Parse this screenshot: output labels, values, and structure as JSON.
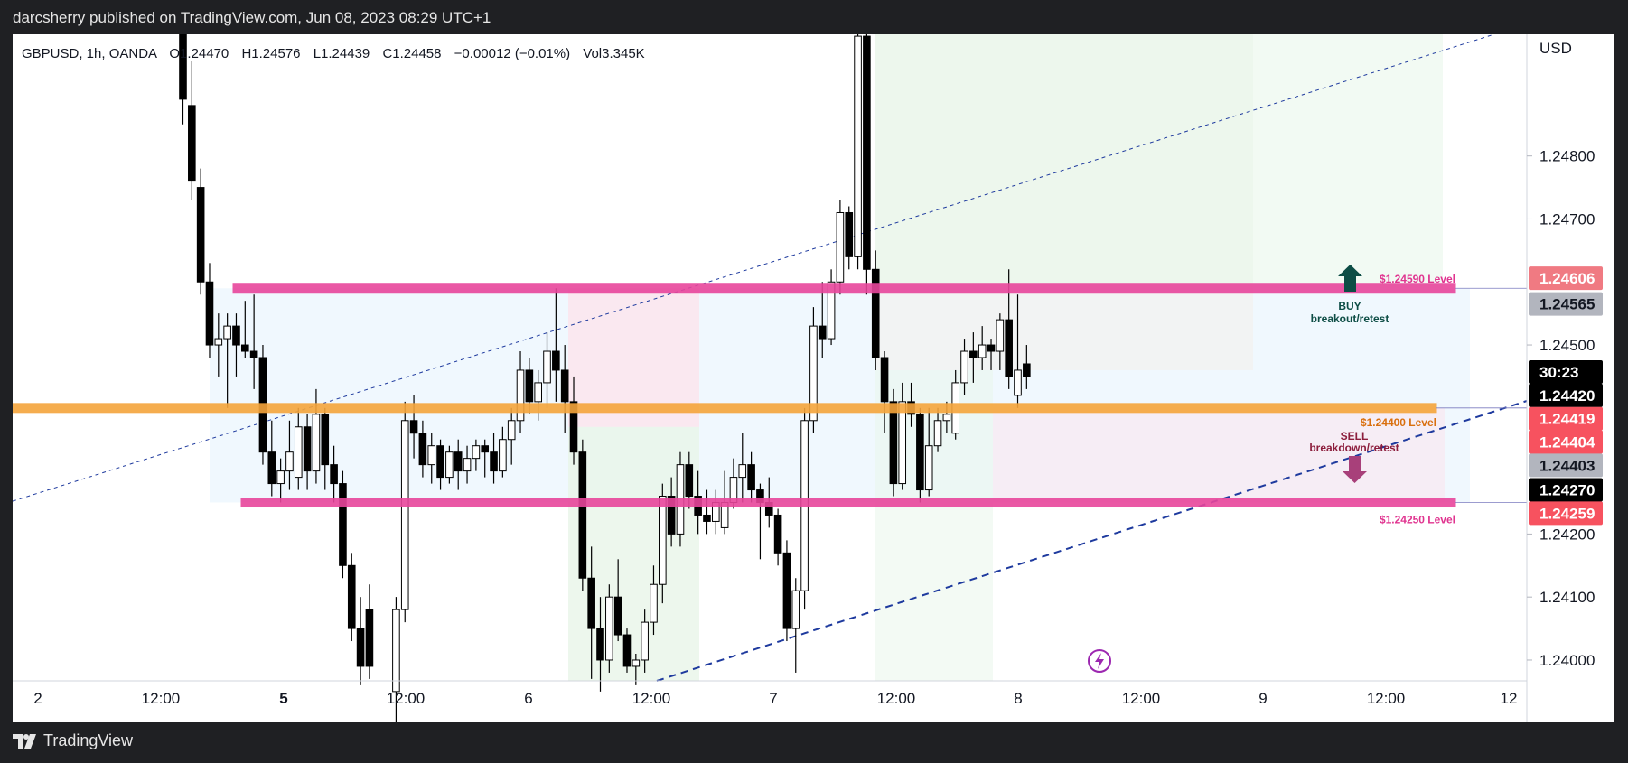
{
  "header": {
    "publisher": "darcsherry published on TradingView.com, Jun 08, 2023 08:29 UTC+1"
  },
  "footer": {
    "brand": "TradingView"
  },
  "colors": {
    "background": "#ffffff",
    "pink": "#e8469c",
    "orange": "#f5a53b",
    "navy": "#1e3a9e",
    "buy": "#0d4d45",
    "sell": "#a8407a"
  },
  "chart_data": {
    "type": "candlestick",
    "symbol_info": {
      "symbol": "GBPUSD, 1h, OANDA",
      "open": "O1.24470",
      "high": "H1.24576",
      "low": "L1.24439",
      "close": "C1.24458",
      "change": "−0.00012 (−0.01%)",
      "volume": "Vol3.345K"
    },
    "currency": "USD",
    "ylim": [
      1.23967,
      1.24993
    ],
    "y_ticks": [
      "1.24000",
      "1.24100",
      "1.24200",
      "1.24500",
      "1.24700",
      "1.24800"
    ],
    "x_ticks": [
      "2",
      "12:00",
      "5",
      "12:00",
      "6",
      "12:00",
      "7",
      "12:00",
      "8",
      "12:00",
      "9",
      "12:00",
      "12"
    ],
    "x_ticks_bold": [
      false,
      false,
      true,
      false,
      false,
      false,
      false,
      false,
      false,
      false,
      false,
      false,
      false
    ],
    "levels": [
      {
        "label": "$1.24590 Level",
        "price": 1.2459,
        "color": "#e8469c",
        "text_color": "#e0338f"
      },
      {
        "label": "$1.24400 Level",
        "price": 1.244,
        "color": "#f5a53b",
        "text_color": "#d96f0e"
      },
      {
        "label": "$1.24250 Level",
        "price": 1.2425,
        "color": "#e8469c",
        "text_color": "#e0338f"
      }
    ],
    "annotations": [
      {
        "text": "BUY",
        "subtext": "breakout/retest",
        "color": "#0d4d45"
      },
      {
        "text": "SELL",
        "subtext": "breakdown/retest",
        "color": "#8c1d3c"
      }
    ],
    "price_badges": [
      {
        "text": "1.24606",
        "price": 1.24606,
        "bg": "#f07a82",
        "fg": "#ffffff"
      },
      {
        "text": "1.24565",
        "price": 1.24565,
        "bg": "#b2b5be",
        "fg": "#131722"
      },
      {
        "text": "30:23",
        "price": 1.24457,
        "bg": "#000000",
        "fg": "#ffffff"
      },
      {
        "text": "1.24420",
        "price": 1.2442,
        "bg": "#000000",
        "fg": "#ffffff"
      },
      {
        "text": "1.24419",
        "price": 1.24383,
        "bg": "#f7525f",
        "fg": "#ffffff"
      },
      {
        "text": "1.24404",
        "price": 1.24346,
        "bg": "#f7525f",
        "fg": "#ffffff"
      },
      {
        "text": "1.24403",
        "price": 1.24309,
        "bg": "#b2b5be",
        "fg": "#131722"
      },
      {
        "text": "1.24270",
        "price": 1.2427,
        "bg": "#000000",
        "fg": "#ffffff"
      },
      {
        "text": "1.24259",
        "price": 1.24233,
        "bg": "#f7525f",
        "fg": "#ffffff"
      }
    ],
    "candles": [
      {
        "i": 3,
        "o": 1.25,
        "h": 1.251,
        "l": 1.2485,
        "c": 1.2489
      },
      {
        "i": 4,
        "o": 1.2488,
        "h": 1.2495,
        "l": 1.2473,
        "c": 1.2476
      },
      {
        "i": 5,
        "o": 1.2475,
        "h": 1.2478,
        "l": 1.2458,
        "c": 1.246
      },
      {
        "i": 6,
        "o": 1.246,
        "h": 1.2463,
        "l": 1.2448,
        "c": 1.245
      },
      {
        "i": 7,
        "o": 1.245,
        "h": 1.2455,
        "l": 1.2445,
        "c": 1.2451
      },
      {
        "i": 8,
        "o": 1.2451,
        "h": 1.2455,
        "l": 1.244,
        "c": 1.2453
      },
      {
        "i": 9,
        "o": 1.2453,
        "h": 1.2455,
        "l": 1.2445,
        "c": 1.245
      },
      {
        "i": 10,
        "o": 1.245,
        "h": 1.2457,
        "l": 1.2448,
        "c": 1.2449
      },
      {
        "i": 11,
        "o": 1.2449,
        "h": 1.2458,
        "l": 1.2443,
        "c": 1.2448
      },
      {
        "i": 12,
        "o": 1.2448,
        "h": 1.245,
        "l": 1.2431,
        "c": 1.2433
      },
      {
        "i": 13,
        "o": 1.2433,
        "h": 1.2438,
        "l": 1.2426,
        "c": 1.2428
      },
      {
        "i": 14,
        "o": 1.2428,
        "h": 1.2432,
        "l": 1.2425,
        "c": 1.243
      },
      {
        "i": 15,
        "o": 1.243,
        "h": 1.2438,
        "l": 1.2427,
        "c": 1.2433
      },
      {
        "i": 16,
        "o": 1.2429,
        "h": 1.244,
        "l": 1.2427,
        "c": 1.2437
      },
      {
        "i": 17,
        "o": 1.2437,
        "h": 1.2439,
        "l": 1.2427,
        "c": 1.243
      },
      {
        "i": 18,
        "o": 1.243,
        "h": 1.2443,
        "l": 1.2428,
        "c": 1.2439
      },
      {
        "i": 19,
        "o": 1.2439,
        "h": 1.244,
        "l": 1.2427,
        "c": 1.2431
      },
      {
        "i": 20,
        "o": 1.2431,
        "h": 1.2434,
        "l": 1.2425,
        "c": 1.2428
      },
      {
        "i": 21,
        "o": 1.2428,
        "h": 1.243,
        "l": 1.2413,
        "c": 1.2415
      },
      {
        "i": 22,
        "o": 1.2415,
        "h": 1.2417,
        "l": 1.2403,
        "c": 1.2405
      },
      {
        "i": 23,
        "o": 1.2405,
        "h": 1.241,
        "l": 1.2396,
        "c": 1.2399
      },
      {
        "i": 24,
        "o": 1.2408,
        "h": 1.2412,
        "l": 1.2397,
        "c": 1.2399
      },
      {
        "i": 27,
        "o": 1.2395,
        "h": 1.241,
        "l": 1.239,
        "c": 1.2408
      },
      {
        "i": 28,
        "o": 1.2408,
        "h": 1.2441,
        "l": 1.2406,
        "c": 1.2438
      },
      {
        "i": 29,
        "o": 1.2438,
        "h": 1.2442,
        "l": 1.2432,
        "c": 1.2436
      },
      {
        "i": 30,
        "o": 1.2436,
        "h": 1.2438,
        "l": 1.2429,
        "c": 1.2431
      },
      {
        "i": 31,
        "o": 1.2431,
        "h": 1.2436,
        "l": 1.2428,
        "c": 1.2434
      },
      {
        "i": 32,
        "o": 1.2434,
        "h": 1.2435,
        "l": 1.2427,
        "c": 1.2429
      },
      {
        "i": 33,
        "o": 1.2429,
        "h": 1.2434,
        "l": 1.2428,
        "c": 1.2433
      },
      {
        "i": 34,
        "o": 1.2433,
        "h": 1.2435,
        "l": 1.2427,
        "c": 1.243
      },
      {
        "i": 35,
        "o": 1.243,
        "h": 1.2434,
        "l": 1.2428,
        "c": 1.2432
      },
      {
        "i": 36,
        "o": 1.2432,
        "h": 1.2435,
        "l": 1.243,
        "c": 1.2434
      },
      {
        "i": 37,
        "o": 1.2434,
        "h": 1.2435,
        "l": 1.2429,
        "c": 1.2433
      },
      {
        "i": 38,
        "o": 1.2433,
        "h": 1.2436,
        "l": 1.2428,
        "c": 1.243
      },
      {
        "i": 39,
        "o": 1.243,
        "h": 1.2437,
        "l": 1.2429,
        "c": 1.2435
      },
      {
        "i": 40,
        "o": 1.2435,
        "h": 1.244,
        "l": 1.2431,
        "c": 1.2438
      },
      {
        "i": 41,
        "o": 1.2438,
        "h": 1.2449,
        "l": 1.2436,
        "c": 1.2446
      },
      {
        "i": 42,
        "o": 1.2446,
        "h": 1.2448,
        "l": 1.2439,
        "c": 1.2441
      },
      {
        "i": 43,
        "o": 1.2441,
        "h": 1.2446,
        "l": 1.2438,
        "c": 1.2444
      },
      {
        "i": 44,
        "o": 1.2444,
        "h": 1.2452,
        "l": 1.244,
        "c": 1.2449
      },
      {
        "i": 45,
        "o": 1.2449,
        "h": 1.2459,
        "l": 1.2441,
        "c": 1.2446
      },
      {
        "i": 46,
        "o": 1.2446,
        "h": 1.245,
        "l": 1.2436,
        "c": 1.2441
      },
      {
        "i": 47,
        "o": 1.2441,
        "h": 1.2445,
        "l": 1.2431,
        "c": 1.2433
      },
      {
        "i": 48,
        "o": 1.2433,
        "h": 1.2435,
        "l": 1.2411,
        "c": 1.2413
      },
      {
        "i": 49,
        "o": 1.2413,
        "h": 1.2418,
        "l": 1.2397,
        "c": 1.2405
      },
      {
        "i": 50,
        "o": 1.2405,
        "h": 1.241,
        "l": 1.2395,
        "c": 1.24
      },
      {
        "i": 51,
        "o": 1.24,
        "h": 1.2412,
        "l": 1.2398,
        "c": 1.241
      },
      {
        "i": 52,
        "o": 1.241,
        "h": 1.2416,
        "l": 1.2403,
        "c": 1.2404
      },
      {
        "i": 53,
        "o": 1.2404,
        "h": 1.2405,
        "l": 1.2398,
        "c": 1.2399
      },
      {
        "i": 54,
        "o": 1.2399,
        "h": 1.2401,
        "l": 1.2396,
        "c": 1.24
      },
      {
        "i": 55,
        "o": 1.24,
        "h": 1.2408,
        "l": 1.2398,
        "c": 1.2406
      },
      {
        "i": 56,
        "o": 1.2406,
        "h": 1.2415,
        "l": 1.2404,
        "c": 1.2412
      },
      {
        "i": 57,
        "o": 1.2412,
        "h": 1.2428,
        "l": 1.2409,
        "c": 1.2426
      },
      {
        "i": 58,
        "o": 1.2426,
        "h": 1.2429,
        "l": 1.2418,
        "c": 1.242
      },
      {
        "i": 59,
        "o": 1.242,
        "h": 1.2433,
        "l": 1.2418,
        "c": 1.2431
      },
      {
        "i": 60,
        "o": 1.2431,
        "h": 1.2433,
        "l": 1.2424,
        "c": 1.2426
      },
      {
        "i": 61,
        "o": 1.2426,
        "h": 1.243,
        "l": 1.242,
        "c": 1.2423
      },
      {
        "i": 62,
        "o": 1.2423,
        "h": 1.2427,
        "l": 1.242,
        "c": 1.2422
      },
      {
        "i": 63,
        "o": 1.2422,
        "h": 1.2427,
        "l": 1.242,
        "c": 1.2425
      },
      {
        "i": 64,
        "o": 1.2421,
        "h": 1.243,
        "l": 1.242,
        "c": 1.2425
      },
      {
        "i": 65,
        "o": 1.2425,
        "h": 1.2432,
        "l": 1.2424,
        "c": 1.2429
      },
      {
        "i": 66,
        "o": 1.2429,
        "h": 1.2436,
        "l": 1.2425,
        "c": 1.2431
      },
      {
        "i": 67,
        "o": 1.2431,
        "h": 1.2433,
        "l": 1.2425,
        "c": 1.2427
      },
      {
        "i": 68,
        "o": 1.2427,
        "h": 1.2428,
        "l": 1.2416,
        "c": 1.2425
      },
      {
        "i": 69,
        "o": 1.2425,
        "h": 1.2429,
        "l": 1.2421,
        "c": 1.2423
      },
      {
        "i": 70,
        "o": 1.2423,
        "h": 1.2424,
        "l": 1.2415,
        "c": 1.2417
      },
      {
        "i": 71,
        "o": 1.2417,
        "h": 1.2419,
        "l": 1.2403,
        "c": 1.2405
      },
      {
        "i": 72,
        "o": 1.2405,
        "h": 1.2413,
        "l": 1.2398,
        "c": 1.2411
      },
      {
        "i": 73,
        "o": 1.2411,
        "h": 1.244,
        "l": 1.2408,
        "c": 1.2438
      },
      {
        "i": 74,
        "o": 1.2438,
        "h": 1.2456,
        "l": 1.2436,
        "c": 1.2453
      },
      {
        "i": 75,
        "o": 1.2453,
        "h": 1.246,
        "l": 1.2448,
        "c": 1.2451
      },
      {
        "i": 76,
        "o": 1.2451,
        "h": 1.2462,
        "l": 1.245,
        "c": 1.246
      },
      {
        "i": 77,
        "o": 1.246,
        "h": 1.2473,
        "l": 1.2458,
        "c": 1.2471
      },
      {
        "i": 78,
        "o": 1.2471,
        "h": 1.2472,
        "l": 1.2462,
        "c": 1.2464
      },
      {
        "i": 79,
        "o": 1.2464,
        "h": 1.25,
        "l": 1.2462,
        "c": 1.2499
      },
      {
        "i": 80,
        "o": 1.2499,
        "h": 1.2502,
        "l": 1.2458,
        "c": 1.2462
      },
      {
        "i": 81,
        "o": 1.2462,
        "h": 1.2465,
        "l": 1.2446,
        "c": 1.2448
      },
      {
        "i": 82,
        "o": 1.2448,
        "h": 1.2449,
        "l": 1.2436,
        "c": 1.2441
      },
      {
        "i": 83,
        "o": 1.2441,
        "h": 1.2443,
        "l": 1.2426,
        "c": 1.2428
      },
      {
        "i": 84,
        "o": 1.2428,
        "h": 1.2444,
        "l": 1.2427,
        "c": 1.2441
      },
      {
        "i": 85,
        "o": 1.2441,
        "h": 1.2444,
        "l": 1.2437,
        "c": 1.2439
      },
      {
        "i": 86,
        "o": 1.2439,
        "h": 1.244,
        "l": 1.2425,
        "c": 1.2427
      },
      {
        "i": 87,
        "o": 1.2427,
        "h": 1.244,
        "l": 1.2426,
        "c": 1.2434
      },
      {
        "i": 88,
        "o": 1.2434,
        "h": 1.244,
        "l": 1.2433,
        "c": 1.2438
      },
      {
        "i": 89,
        "o": 1.2438,
        "h": 1.2441,
        "l": 1.2436,
        "c": 1.2439
      },
      {
        "i": 90,
        "o": 1.2436,
        "h": 1.2446,
        "l": 1.2435,
        "c": 1.2444
      },
      {
        "i": 91,
        "o": 1.2444,
        "h": 1.2451,
        "l": 1.2442,
        "c": 1.2449
      },
      {
        "i": 92,
        "o": 1.2449,
        "h": 1.2452,
        "l": 1.2444,
        "c": 1.2448
      },
      {
        "i": 93,
        "o": 1.2448,
        "h": 1.2453,
        "l": 1.2446,
        "c": 1.245
      },
      {
        "i": 94,
        "o": 1.245,
        "h": 1.2451,
        "l": 1.2446,
        "c": 1.2449
      },
      {
        "i": 95,
        "o": 1.2449,
        "h": 1.2455,
        "l": 1.2446,
        "c": 1.2454
      },
      {
        "i": 96,
        "o": 1.2454,
        "h": 1.2462,
        "l": 1.2443,
        "c": 1.2445
      },
      {
        "i": 97,
        "o": 1.2442,
        "h": 1.2458,
        "l": 1.244,
        "c": 1.2446
      },
      {
        "i": 98,
        "o": 1.2447,
        "h": 1.245,
        "l": 1.2443,
        "c": 1.2445
      }
    ]
  }
}
